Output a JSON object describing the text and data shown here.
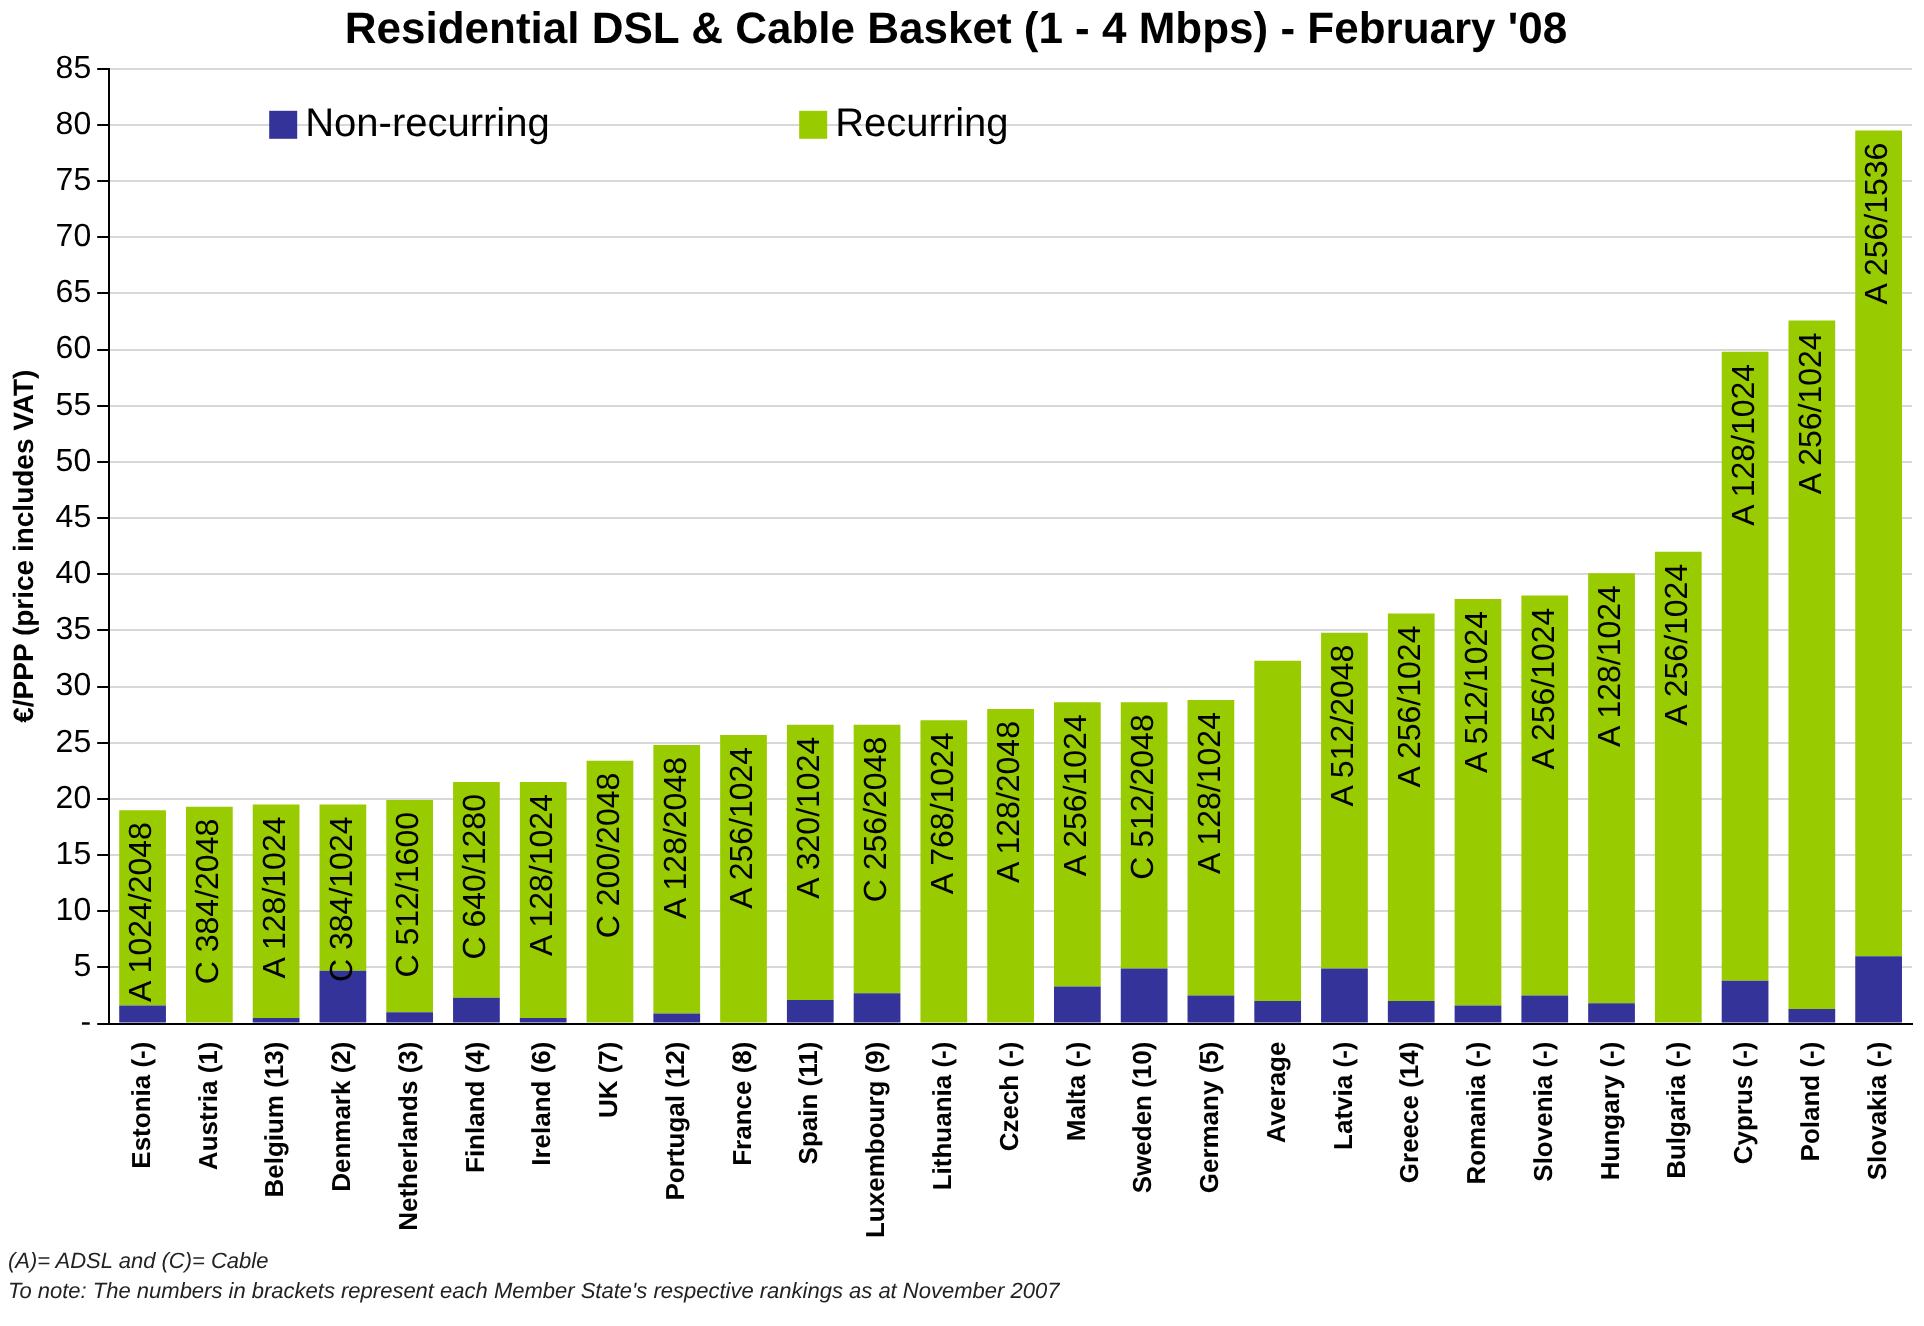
{
  "chart_data": {
    "type": "bar",
    "title": "Residential DSL & Cable Basket (1 - 4 Mbps) - February '08",
    "ylabel": "€/PPP (price includes VAT)",
    "categories": [
      "Estonia (-)",
      "Austria (1)",
      "Belgium (13)",
      "Denmark (2)",
      "Netherlands (3)",
      "Finland (4)",
      "Ireland (6)",
      "UK (7)",
      "Portugal (12)",
      "France (8)",
      "Spain (11)",
      "Luxembourg (9)",
      "Lithuania (-)",
      "Czech (-)",
      "Malta (-)",
      "Sweden (10)",
      "Germany (5)",
      "Average",
      "Latvia (-)",
      "Greece (14)",
      "Romania (-)",
      "Slovenia (-)",
      "Hungary (-)",
      "Bulgaria (-)",
      "Cyprus (-)",
      "Poland (-)",
      "Slovakia (-)"
    ],
    "stacked": true,
    "series": [
      {
        "name": "Non-recurring",
        "color": "#333399",
        "values": [
          1.6,
          0,
          0.5,
          4.7,
          1.0,
          2.3,
          0.5,
          0,
          0.9,
          0,
          2.1,
          2.7,
          0,
          0,
          3.3,
          4.9,
          2.5,
          2.0,
          4.9,
          2.0,
          1.6,
          2.5,
          1.8,
          0,
          3.8,
          1.3,
          6.0
        ]
      },
      {
        "name": "Recurring",
        "color": "#99cc00",
        "values": [
          17.4,
          19.3,
          19.0,
          14.8,
          18.9,
          19.2,
          21.0,
          23.4,
          23.9,
          25.7,
          24.5,
          23.9,
          27.0,
          28.0,
          25.3,
          23.7,
          26.3,
          30.3,
          29.9,
          34.5,
          36.2,
          35.6,
          38.3,
          42.0,
          56.0,
          61.3,
          73.5
        ]
      }
    ],
    "ylim": [
      0,
      85
    ],
    "yticks": [
      {
        "value": 0,
        "label": "-"
      },
      5,
      10,
      15,
      20,
      25,
      30,
      35,
      40,
      45,
      50,
      55,
      60,
      65,
      70,
      75,
      80,
      85
    ],
    "grid": "y",
    "legend": "top left",
    "annotations": [
      {
        "text": "A 1024/2048",
        "x": "Estonia (-)",
        "y": 19.0
      },
      {
        "text": "C 384/2048",
        "x": "Austria (1)",
        "y": 19.3
      },
      {
        "text": "A 128/1024",
        "x": "Belgium (13)",
        "y": 19.5
      },
      {
        "text": "C 384/1024",
        "x": "Denmark (2)",
        "y": 19.5
      },
      {
        "text": "C 512/1600",
        "x": "Netherlands (3)",
        "y": 19.9
      },
      {
        "text": "C 640/1280",
        "x": "Finland (4)",
        "y": 21.5
      },
      {
        "text": "A 128/1024",
        "x": "Ireland (6)",
        "y": 21.5
      },
      {
        "text": "C 200/2048",
        "x": "UK (7)",
        "y": 23.4
      },
      {
        "text": "A 128/2048",
        "x": "Portugal (12)",
        "y": 24.8
      },
      {
        "text": "A 256/1024",
        "x": "France (8)",
        "y": 25.7
      },
      {
        "text": "A 320/1024",
        "x": "Spain (11)",
        "y": 26.6
      },
      {
        "text": "C 256/2048",
        "x": "Luxembourg (9)",
        "y": 26.6
      },
      {
        "text": "A 768/1024",
        "x": "Lithuania (-)",
        "y": 27.0
      },
      {
        "text": "A 128/2048",
        "x": "Czech (-)",
        "y": 28.0
      },
      {
        "text": "A 256/1024",
        "x": "Malta (-)",
        "y": 28.6
      },
      {
        "text": "C 512/2048",
        "x": "Sweden (10)",
        "y": 28.6
      },
      {
        "text": "A 128/1024",
        "x": "Germany (5)",
        "y": 28.8
      },
      {
        "text": "A 512/2048",
        "x": "Latvia (-)",
        "y": 34.8
      },
      {
        "text": "A 256/1024",
        "x": "Greece (14)",
        "y": 36.5
      },
      {
        "text": "A 512/1024",
        "x": "Romania (-)",
        "y": 37.8
      },
      {
        "text": "A 256/1024",
        "x": "Slovenia (-)",
        "y": 38.1
      },
      {
        "text": "A 128/1024",
        "x": "Hungary (-)",
        "y": 40.1
      },
      {
        "text": "A 256/1024",
        "x": "Bulgaria (-)",
        "y": 42.0
      },
      {
        "text": "A 128/1024",
        "x": "Cyprus (-)",
        "y": 59.8
      },
      {
        "text": "A 256/1024",
        "x": "Poland (-)",
        "y": 62.6
      },
      {
        "text": "A 256/1536",
        "x": "Slovakia (-)",
        "y": 79.5
      },
      "(A)= ADSL and (C)= Cable",
      "To note: The numbers in brackets represent each Member State's respective rankings as at November 2007"
    ]
  }
}
